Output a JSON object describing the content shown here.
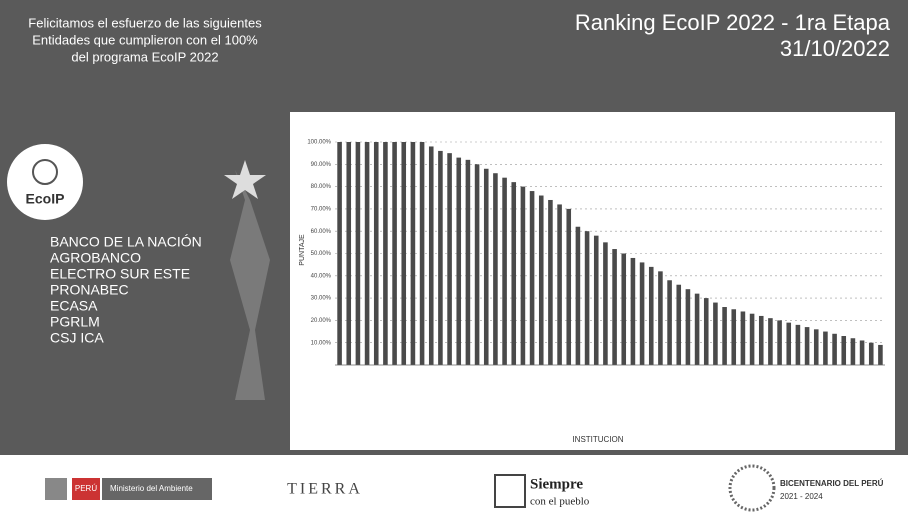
{
  "header": {
    "message": [
      "Felicitamos el esfuerzo de las siguientes",
      "Entidades que cumplieron con el 100%",
      "del programa EcoIP 2022"
    ],
    "title": "Ranking EcoIP 2022 - 1ra Etapa",
    "date": "31/10/2022"
  },
  "badge": "EcoIP",
  "entities": [
    "BANCO DE LA NACIÓN",
    "AGROBANCO",
    "ELECTRO SUR ESTE",
    "PRONABEC",
    "ECASA",
    "PGRLM",
    "CSJ ICA"
  ],
  "chart_data": {
    "type": "bar",
    "x_label": "INSTITUCION",
    "y_label": "PUNTAJE",
    "color": "#4a4a4a",
    "grid": true,
    "categories": [
      null,
      null,
      null,
      null,
      null,
      null,
      null,
      null,
      null,
      null,
      null,
      null,
      null,
      null,
      null,
      null,
      null,
      null,
      null,
      null,
      null,
      null,
      null,
      null,
      null,
      null,
      null,
      null,
      null,
      null,
      null,
      null,
      null,
      null,
      null,
      null,
      null,
      null,
      null,
      null,
      null,
      null,
      null,
      null,
      null,
      null,
      null,
      null,
      null,
      null,
      null,
      null,
      null,
      null,
      null,
      null,
      null,
      null,
      null,
      null
    ],
    "values": [
      100,
      100,
      100,
      100,
      100,
      100,
      100,
      100,
      100,
      100,
      98,
      96,
      95,
      93,
      92,
      90,
      88,
      86,
      84,
      82,
      80,
      78,
      76,
      74,
      72,
      70,
      62,
      60,
      58,
      55,
      52,
      50,
      48,
      46,
      44,
      42,
      38,
      36,
      34,
      32,
      30,
      28,
      26,
      25,
      24,
      23,
      22,
      21,
      20,
      19,
      18,
      17,
      16,
      15,
      14,
      13,
      12,
      11,
      10,
      9
    ],
    "ylim": [
      0,
      100
    ],
    "yticks": [
      {
        "value": 10,
        "label": "10.00%"
      },
      {
        "value": 20,
        "label": "20.00%"
      },
      {
        "value": 30,
        "label": "30.00%"
      },
      {
        "value": 40,
        "label": "40.00%"
      },
      {
        "value": 50,
        "label": "50.00%"
      },
      {
        "value": 60,
        "label": "60.00%"
      },
      {
        "value": 70,
        "label": "70.00%"
      },
      {
        "value": 80,
        "label": "80.00%"
      },
      {
        "value": 90,
        "label": "90.00%"
      },
      {
        "value": 100,
        "label": "100.00%"
      }
    ]
  },
  "footer": {
    "peru": "PERÚ",
    "ministry": "Ministerio del Ambiente",
    "tierra": "TIERRA",
    "siempre": "Siempre",
    "pueblo": "con el pueblo",
    "bicentenario": "BICENTENARIO DEL PERÚ",
    "years": "2021 - 2024"
  }
}
